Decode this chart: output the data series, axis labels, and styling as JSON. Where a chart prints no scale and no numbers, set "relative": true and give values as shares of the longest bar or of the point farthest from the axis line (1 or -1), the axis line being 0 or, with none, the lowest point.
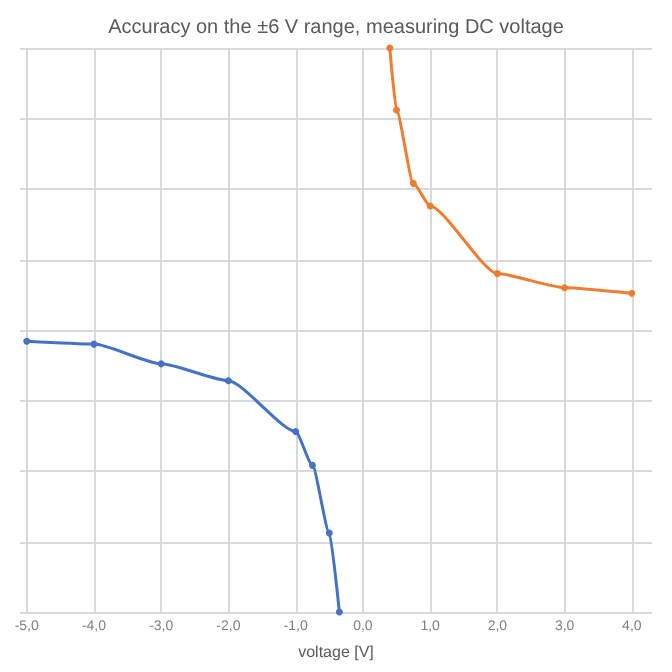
{
  "chart_data": {
    "type": "line",
    "title": "Accuracy on the ±6 V range, measuring DC voltage",
    "xlabel": "voltage [V]",
    "relative": true,
    "xlim": [
      -5.1,
      4.3
    ],
    "xticks": [
      {
        "value": -5,
        "label": "-5,0"
      },
      {
        "value": -4,
        "label": "-4,0"
      },
      {
        "value": -3,
        "label": "-3,0"
      },
      {
        "value": -2,
        "label": "-2,0"
      },
      {
        "value": -1,
        "label": "-1,0"
      },
      {
        "value": 0,
        "label": "0,0"
      },
      {
        "value": 1,
        "label": "1,0"
      },
      {
        "value": 2,
        "label": "2,0"
      },
      {
        "value": 3,
        "label": "3,0"
      },
      {
        "value": 4,
        "label": "4,0"
      }
    ],
    "series": [
      {
        "color": "#4472c4",
        "x": [
          -5,
          -4,
          -3,
          -2,
          -1,
          -0.75,
          -0.5,
          -0.35
        ],
        "values": [
          0.48,
          0.475,
          0.44,
          0.41,
          0.32,
          0.26,
          0.14,
          0
        ]
      },
      {
        "color": "#ed7d31",
        "x": [
          0.4,
          0.5,
          0.75,
          1,
          2,
          3,
          4
        ],
        "values": [
          1,
          0.89,
          0.76,
          0.72,
          0.6,
          0.575,
          0.565
        ]
      }
    ],
    "grid": true,
    "marker": "circle"
  }
}
